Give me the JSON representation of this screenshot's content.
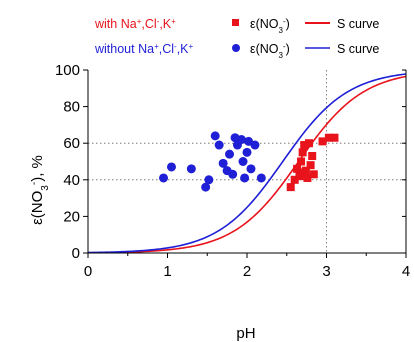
{
  "chart_data": {
    "type": "scatter",
    "xlabel": "pH",
    "ylabel": "ε(NO3⁻), %",
    "xlim": [
      0,
      4
    ],
    "ylim": [
      0,
      100
    ],
    "x_ticks": [
      "0",
      "1",
      "2",
      "3",
      "4"
    ],
    "y_ticks": [
      "0",
      "20",
      "40",
      "60",
      "80",
      "100"
    ],
    "grid": "dotted reference lines at y=40, y=60 and x=3",
    "legend": [
      {
        "condition": "with Na⁺,Cl⁻,K⁺",
        "points_label": "ε(NO3⁻)",
        "curve_label": "S curve",
        "color": "#e8131b"
      },
      {
        "condition": "without Na⁺,Cl⁻,K⁺",
        "points_label": "ε(NO3⁻)",
        "curve_label": "S curve",
        "color": "#1f1fd6"
      }
    ],
    "series": [
      {
        "marker": "square",
        "color": "#e8131b",
        "points": [
          [
            2.55,
            36
          ],
          [
            2.6,
            40
          ],
          [
            2.63,
            46
          ],
          [
            2.66,
            42
          ],
          [
            2.68,
            50
          ],
          [
            2.7,
            44
          ],
          [
            2.7,
            55
          ],
          [
            2.72,
            59
          ],
          [
            2.74,
            45
          ],
          [
            2.76,
            41
          ],
          [
            2.78,
            60
          ],
          [
            2.8,
            48
          ],
          [
            2.82,
            53
          ],
          [
            2.84,
            43
          ],
          [
            2.95,
            61
          ],
          [
            3.03,
            63
          ],
          [
            3.1,
            63
          ]
        ]
      },
      {
        "marker": "circle",
        "color": "#1f1fd6",
        "points": [
          [
            0.95,
            41
          ],
          [
            1.05,
            47
          ],
          [
            1.3,
            46
          ],
          [
            1.48,
            36
          ],
          [
            1.52,
            40
          ],
          [
            1.6,
            64
          ],
          [
            1.65,
            59
          ],
          [
            1.7,
            49
          ],
          [
            1.75,
            45
          ],
          [
            1.78,
            54
          ],
          [
            1.82,
            43
          ],
          [
            1.85,
            63
          ],
          [
            1.88,
            59
          ],
          [
            1.93,
            62
          ],
          [
            1.95,
            50
          ],
          [
            1.97,
            41
          ],
          [
            2.0,
            55
          ],
          [
            2.02,
            61
          ],
          [
            2.05,
            46
          ],
          [
            2.1,
            59
          ],
          [
            2.18,
            41
          ]
        ]
      },
      {
        "type": "line",
        "color": "#e8131b",
        "curve": "logistic",
        "midpoint_pH": 2.65,
        "steepness": 2.45,
        "max": 100
      },
      {
        "type": "line",
        "color": "#1f1fd6",
        "curve": "logistic",
        "midpoint_pH": 2.45,
        "steepness": 2.45,
        "max": 100
      }
    ]
  }
}
